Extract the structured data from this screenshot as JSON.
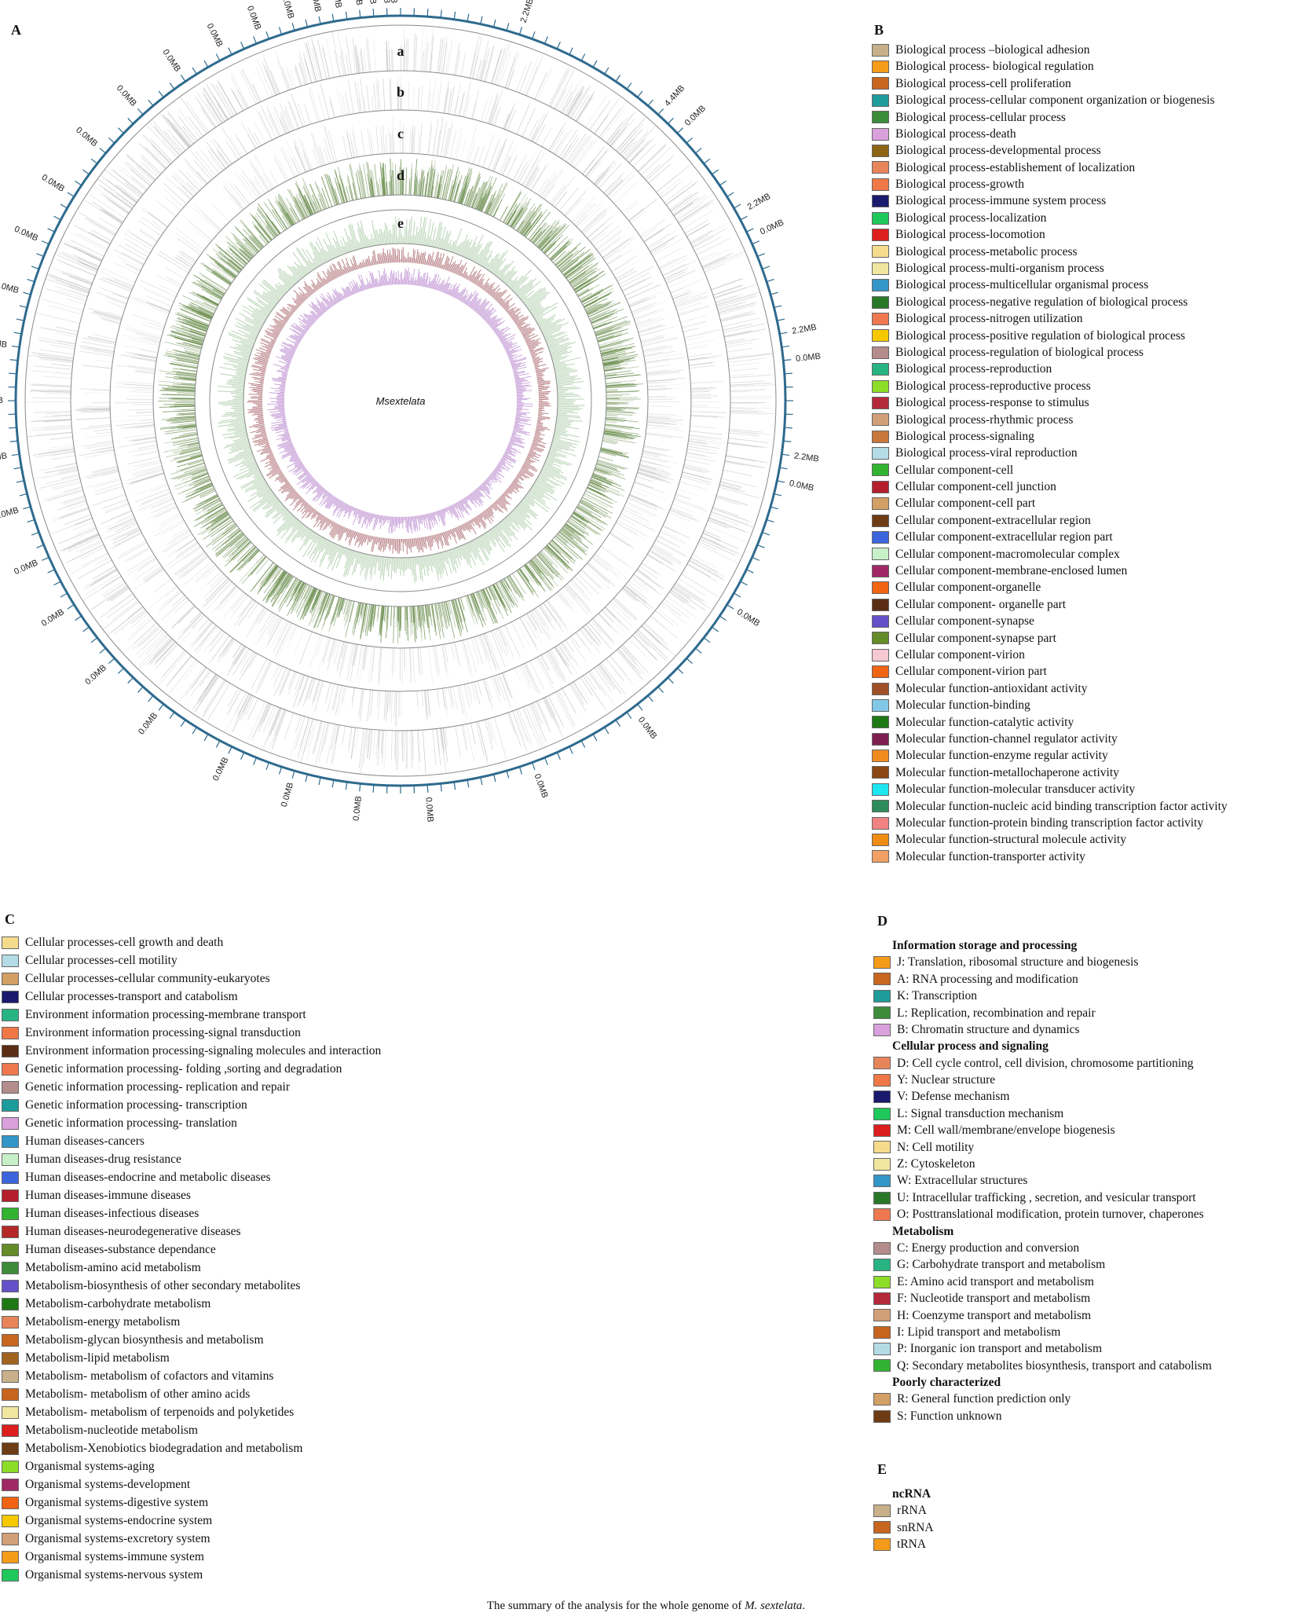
{
  "panels": {
    "A": "A",
    "B": "B",
    "C": "C",
    "D": "D",
    "E": "E"
  },
  "circos": {
    "center_label": "Msextelata",
    "ring_labels": [
      "a",
      "b",
      "c",
      "d",
      "e"
    ],
    "scale_labels": [
      "2.2MB",
      "4.4MB",
      "0.0MB",
      "2.2MB",
      "0.0MB",
      "2.2MB",
      "0.0MB",
      "2.2MB",
      "0.0MB",
      "0.0MB",
      "0.0MB",
      "0.0MB",
      "0.0MB",
      "0.0MB",
      "0.0MB",
      "0.0MB",
      "0.0MB",
      "0.0MB",
      "0.0MB",
      "0.0MB",
      "0.0MB",
      "0.0MB",
      "0.0MB",
      "0.0MB",
      "0.0MB",
      "0.0MB",
      "0.0MB",
      "0.0MB",
      "0.0MB",
      "0.0MB",
      "0.0MB",
      "0.0MB",
      "0.0MB",
      "0.0MB",
      "0.0MB",
      "0.0MB",
      "0.0MB",
      "0.0MB",
      "0.0MB"
    ],
    "colors": {
      "outer_ring": "#2e6a8e",
      "track_d": "#6b8e4e",
      "track_e_red": "#a0525a",
      "track_e_purple": "#b07ac8",
      "track_e_green": "#7fb07a"
    }
  },
  "legend_B": [
    {
      "label": "Biological process –biological  adhesion",
      "color": "#c8b08a"
    },
    {
      "label": "Biological process- biological  regulation",
      "color": "#f59b1a"
    },
    {
      "label": "Biological process-cell  proliferation",
      "color": "#c8651e"
    },
    {
      "label": "Biological process-cellular  component organization or biogenesis",
      "color": "#1e9b9b"
    },
    {
      "label": "Biological process-cellular  process",
      "color": "#3c8c3c"
    },
    {
      "label": "Biological process-death",
      "color": "#d9a0dc"
    },
    {
      "label": "Biological process-developmental  process",
      "color": "#8c6414"
    },
    {
      "label": "Biological process-establishement  of localization",
      "color": "#e8845a"
    },
    {
      "label": "Biological process-growth",
      "color": "#f07846"
    },
    {
      "label": "Biological process-immune  system process",
      "color": "#1a1a6e"
    },
    {
      "label": "Biological process-localization",
      "color": "#1ec85a"
    },
    {
      "label": "Biological process-locomotion",
      "color": "#dc1e1e"
    },
    {
      "label": "Biological process-metabolic  process",
      "color": "#f5dc8c"
    },
    {
      "label": "Biological process-multi-organism  process",
      "color": "#f0e6a0"
    },
    {
      "label": "Biological process-multicellular  organismal process",
      "color": "#3296c8"
    },
    {
      "label": "Biological process-negative regulation of biological  process",
      "color": "#287828"
    },
    {
      "label": "Biological process-nitrogen  utilization",
      "color": "#f07850"
    },
    {
      "label": "Biological process-positive  regulation of biological  process",
      "color": "#f5c800"
    },
    {
      "label": "Biological process-regulation  of biological  process",
      "color": "#b48c8c"
    },
    {
      "label": "Biological process-reproduction",
      "color": "#28b482"
    },
    {
      "label": "Biological process-reproductive  process",
      "color": "#8cdc28"
    },
    {
      "label": "Biological process-response  to stimulus",
      "color": "#b4283c"
    },
    {
      "label": "Biological process-rhythmic  process",
      "color": "#d2a078"
    },
    {
      "label": "Biological process-signaling",
      "color": "#c8783c"
    },
    {
      "label": "Biological process-viral  reproduction",
      "color": "#b4dce6"
    },
    {
      "label": "Cellular component-cell",
      "color": "#32b432"
    },
    {
      "label": "Cellular component-cell  junction",
      "color": "#b41e2d"
    },
    {
      "label": "Cellular component-cell  part",
      "color": "#d2a064"
    },
    {
      "label": "Cellular component-extracellular  region",
      "color": "#6e3c14"
    },
    {
      "label": "Cellular component-extracellular  region part",
      "color": "#3c64dc"
    },
    {
      "label": "Cellular component-macromolecular  complex",
      "color": "#c8f0c8"
    },
    {
      "label": "Cellular component-membrane-enclosed  lumen",
      "color": "#a02864"
    },
    {
      "label": "Cellular component-organelle",
      "color": "#f06414"
    },
    {
      "label": "Cellular component- organelle  part",
      "color": "#5a2d14"
    },
    {
      "label": "Cellular component-synapse",
      "color": "#6450c8"
    },
    {
      "label": "Cellular component-synapse  part",
      "color": "#648c28"
    },
    {
      "label": "Cellular component-virion",
      "color": "#f5c8d2"
    },
    {
      "label": "Cellular component-virion  part",
      "color": "#f06414"
    },
    {
      "label": "Molecular function-antioxidant  activity",
      "color": "#a05028"
    },
    {
      "label": "Molecular function-binding",
      "color": "#82c8e6"
    },
    {
      "label": "Molecular function-catalytic  activity",
      "color": "#1e7814"
    },
    {
      "label": "Molecular function-channel regulator  activity",
      "color": "#7d1e50"
    },
    {
      "label": "Molecular function-enzyme regular activity",
      "color": "#f08c1e"
    },
    {
      "label": "Molecular function-metallochaperone  activity",
      "color": "#8c4614"
    },
    {
      "label": "Molecular function-molecular  transducer activity",
      "color": "#1ee6f0"
    },
    {
      "label": "Molecular function-nucleic acid binding transcription factor activity",
      "color": "#2d8c5a"
    },
    {
      "label": "Molecular function-protein binding transcription factor activity",
      "color": "#f08282"
    },
    {
      "label": "Molecular function-structural  molecule activity",
      "color": "#f08c14"
    },
    {
      "label": "Molecular function-transporter  activity",
      "color": "#f0a064"
    }
  ],
  "legend_C": [
    {
      "label": "Cellular processes-cell  growth and death",
      "color": "#f5dc8c"
    },
    {
      "label": "Cellular processes-cell  motility",
      "color": "#b4dce6"
    },
    {
      "label": "Cellular processes-cellular  community-eukaryotes",
      "color": "#d2a064"
    },
    {
      "label": "Cellular processes-transport and catabolism",
      "color": "#1a1a6e"
    },
    {
      "label": "Environment information  processing-membrane  transport",
      "color": "#28b482"
    },
    {
      "label": "Environment information  processing-signal  transduction",
      "color": "#f07846"
    },
    {
      "label": "Environment information  processing-signaling  molecules  and interaction",
      "color": "#5a2d14"
    },
    {
      "label": "Genetic information  processing-  folding ,sorting  and degradation",
      "color": "#f07850"
    },
    {
      "label": "Genetic information  processing-  replication and repair",
      "color": "#b48c8c"
    },
    {
      "label": "Genetic information  processing-  transcription",
      "color": "#1e9b9b"
    },
    {
      "label": "Genetic information  processing-  translation",
      "color": "#d9a0dc"
    },
    {
      "label": "Human diseases-cancers",
      "color": "#3296c8"
    },
    {
      "label": "Human diseases-drug resistance",
      "color": "#c8f0c8"
    },
    {
      "label": "Human diseases-endocrine and metabolic  diseases",
      "color": "#3c64dc"
    },
    {
      "label": "Human diseases-immune  diseases",
      "color": "#b41e2d"
    },
    {
      "label": "Human diseases-infectious diseases",
      "color": "#32b432"
    },
    {
      "label": "Human diseases-neurodegenerative  diseases",
      "color": "#b42828"
    },
    {
      "label": "Human diseases-substance dependance",
      "color": "#648c28"
    },
    {
      "label": "Metabolism-amino  acid metabolism",
      "color": "#3c8c3c"
    },
    {
      "label": "Metabolism-biosynthesis of other secondary metabolites",
      "color": "#6450c8"
    },
    {
      "label": "Metabolism-carbohydrate metabolism",
      "color": "#1e7814"
    },
    {
      "label": "Metabolism-energy metabolism",
      "color": "#e8845a"
    },
    {
      "label": "Metabolism-glycan biosynthesis and metabolism",
      "color": "#c8651e"
    },
    {
      "label": "Metabolism-lipid  metabolism",
      "color": "#a0641e"
    },
    {
      "label": "Metabolism- metabolism  of cofactors and vitamins",
      "color": "#c8b08a"
    },
    {
      "label": "Metabolism- metabolism  of other amino acids",
      "color": "#c8641e"
    },
    {
      "label": "Metabolism- metabolism  of terpenoids and polyketides",
      "color": "#f0e6a0"
    },
    {
      "label": "Metabolism-nucleotide  metabolism",
      "color": "#dc1e1e"
    },
    {
      "label": "Metabolism-Xenobiotics biodegradation and metabolism",
      "color": "#6e3c14"
    },
    {
      "label": "Organismal systems-aging",
      "color": "#8cdc28"
    },
    {
      "label": "Organismal systems-development",
      "color": "#a02864"
    },
    {
      "label": "Organismal systems-digestive system",
      "color": "#f06414"
    },
    {
      "label": "Organismal systems-endocrine system",
      "color": "#f5c800"
    },
    {
      "label": "Organismal systems-excretory system",
      "color": "#d2a078"
    },
    {
      "label": "Organismal systems-immune  system",
      "color": "#f59b1a"
    },
    {
      "label": "Organismal systems-nervous system",
      "color": "#1ec85a"
    }
  ],
  "legend_D": [
    {
      "heading": "Information storage and processing"
    },
    {
      "label": "J: Translation,  ribosomal structure and biogenesis",
      "color": "#f59b1a"
    },
    {
      "label": "A: RNA processing and modification",
      "color": "#c8651e"
    },
    {
      "label": "K: Transcription",
      "color": "#1e9b9b"
    },
    {
      "label": "L: Replication, recombination and repair",
      "color": "#3c8c3c"
    },
    {
      "label": "B: Chromatin structure and dynamics",
      "color": "#d9a0dc"
    },
    {
      "heading": "Cellular process and signaling"
    },
    {
      "label": "D: Cell cycle control, cell division, chromosome partitioning",
      "color": "#e8845a"
    },
    {
      "label": "Y: Nuclear structure",
      "color": "#f07846"
    },
    {
      "label": "V: Defense mechanism",
      "color": "#1a1a6e"
    },
    {
      "label": "L: Signal transduction mechanism",
      "color": "#1ec85a"
    },
    {
      "label": "M: Cell wall/membrane/envelope  biogenesis",
      "color": "#dc1e1e"
    },
    {
      "label": "N: Cell motility",
      "color": "#f5dc8c"
    },
    {
      "label": "Z: Cytoskeleton",
      "color": "#f0e6a0"
    },
    {
      "label": "W: Extracellular structures",
      "color": "#3296c8"
    },
    {
      "label": "U: Intracellular trafficking , secretion, and vesicular transport",
      "color": "#287828"
    },
    {
      "label": "O: Posttranslational modification,  protein turnover, chaperones",
      "color": "#f07850"
    },
    {
      "heading": "Metabolism"
    },
    {
      "label": "C: Energy production and conversion",
      "color": "#b48c8c"
    },
    {
      "label": "G: Carbohydrate transport and metabolism",
      "color": "#28b482"
    },
    {
      "label": "E: Amino acid transport and metabolism",
      "color": "#8cdc28"
    },
    {
      "label": "F: Nucleotide transport and metabolism",
      "color": "#b4283c"
    },
    {
      "label": "H: Coenzyme transport and metabolism",
      "color": "#d2a078"
    },
    {
      "label": "I: Lipid transport and metabolism",
      "color": "#c8641e"
    },
    {
      "label": "P: Inorganic ion transport and metabolism",
      "color": "#b4dce6"
    },
    {
      "label": "Q: Secondary metabolites biosynthesis, transport and catabolism",
      "color": "#32b432"
    },
    {
      "heading": "Poorly characterized"
    },
    {
      "label": "R: General function prediction only",
      "color": "#d2a064"
    },
    {
      "label": "S: Function unknown",
      "color": "#6e3c14"
    }
  ],
  "legend_E": [
    {
      "heading": "ncRNA"
    },
    {
      "label": "rRNA",
      "color": "#c8b08a"
    },
    {
      "label": "snRNA",
      "color": "#c8651e"
    },
    {
      "label": "tRNA",
      "color": "#f59b1a"
    }
  ],
  "caption": {
    "text": "The summary  of the analysis for the whole genome of ",
    "species": "M. sextelata",
    "end": "."
  }
}
